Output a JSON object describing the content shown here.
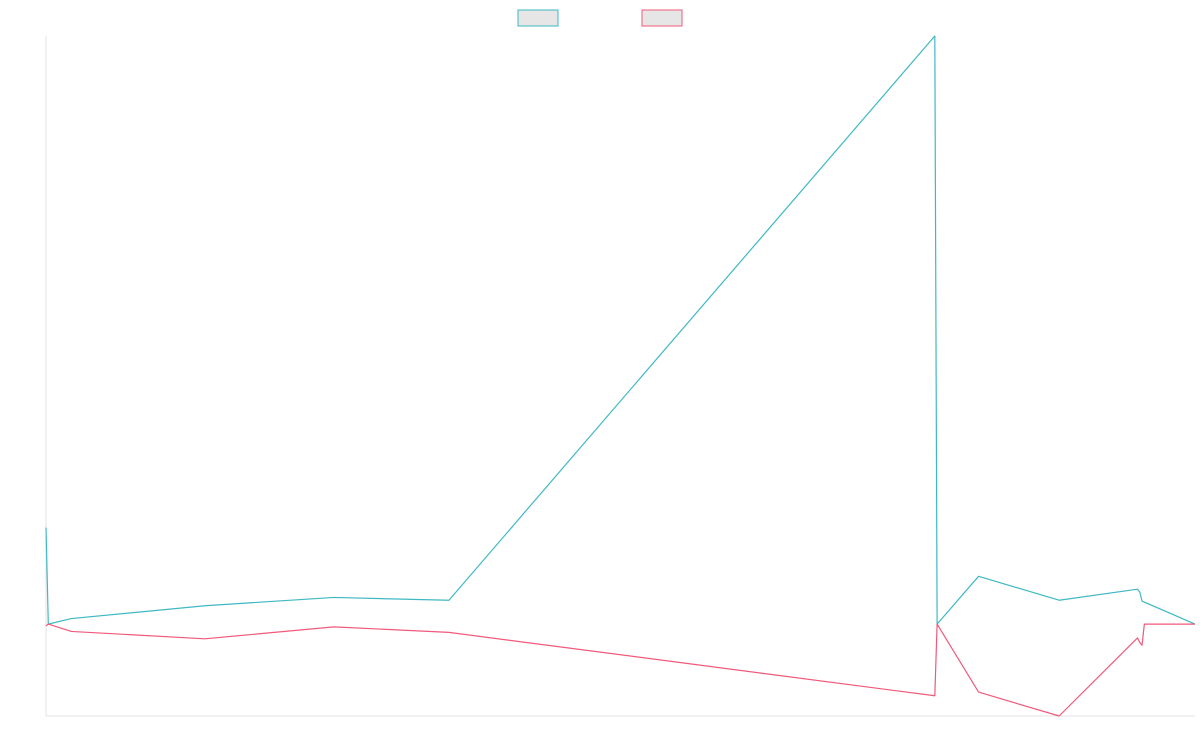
{
  "chart_data": {
    "type": "line",
    "title": "",
    "xlabel": "",
    "ylabel": "",
    "grid": false,
    "legend_position": "top-center",
    "x_count": 500,
    "ylim": [
      -100,
      640
    ],
    "baseline": 0,
    "series": [
      {
        "color": "#3fb8c4",
        "legend_fill": "#e6e6e6",
        "points": [
          [
            0,
            105
          ],
          [
            1,
            0
          ],
          [
            11,
            6
          ],
          [
            69,
            20
          ],
          [
            125,
            29
          ],
          [
            175,
            26
          ],
          [
            386,
            640
          ],
          [
            387,
            0
          ],
          [
            405,
            52
          ],
          [
            440,
            26
          ],
          [
            474,
            38
          ],
          [
            475,
            35
          ],
          [
            476,
            25
          ],
          [
            499,
            0
          ]
        ]
      },
      {
        "color": "#f0597a",
        "legend_fill": "#e6e6e6",
        "points": [
          [
            0,
            -2
          ],
          [
            1,
            0
          ],
          [
            11,
            -8
          ],
          [
            69,
            -16
          ],
          [
            125,
            -3
          ],
          [
            175,
            -9
          ],
          [
            386,
            -78
          ],
          [
            387,
            0
          ],
          [
            405,
            -74
          ],
          [
            440,
            -100
          ],
          [
            474,
            -15
          ],
          [
            475,
            -20
          ],
          [
            476,
            -23
          ],
          [
            477,
            0
          ],
          [
            499,
            0
          ]
        ]
      }
    ]
  }
}
